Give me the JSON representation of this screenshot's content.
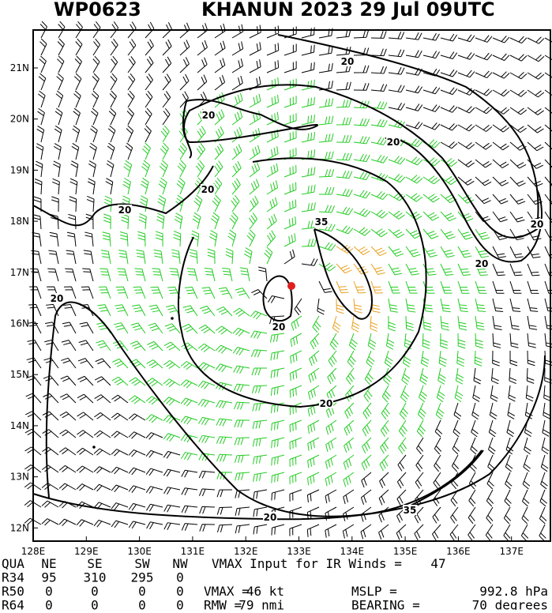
{
  "header": {
    "id": "WP0623",
    "storm": "KHANUN 2023 29 Jul 09UTC"
  },
  "map": {
    "lat_labels": [
      "21N",
      "20N",
      "19N",
      "18N",
      "17N",
      "16N",
      "15N",
      "14N",
      "13N",
      "12N"
    ],
    "lon_labels": [
      "128E",
      "129E",
      "130E",
      "131E",
      "132E",
      "133E",
      "134E",
      "135E",
      "136E",
      "137E"
    ],
    "contour_labels": [
      "20",
      "20",
      "20",
      "20",
      "20",
      "20",
      "20",
      "20",
      "20",
      "20",
      "20",
      "35",
      "35"
    ]
  },
  "table": {
    "rows": [
      [
        "QUA",
        "NE",
        "SE",
        "SW",
        "NW",
        "VMAX Input for IR Winds =",
        "47"
      ],
      [
        "R34",
        "95",
        "310",
        "295",
        "0"
      ],
      [
        "R50",
        "0",
        "0",
        "0",
        "0",
        "VMAX =",
        "46 kt",
        "MSLP =",
        "992.8 hPa"
      ],
      [
        "R64",
        "0",
        "0",
        "0",
        "0",
        "RMW =",
        "79 nmi",
        "BEARING =",
        "70 degrees"
      ]
    ]
  }
}
